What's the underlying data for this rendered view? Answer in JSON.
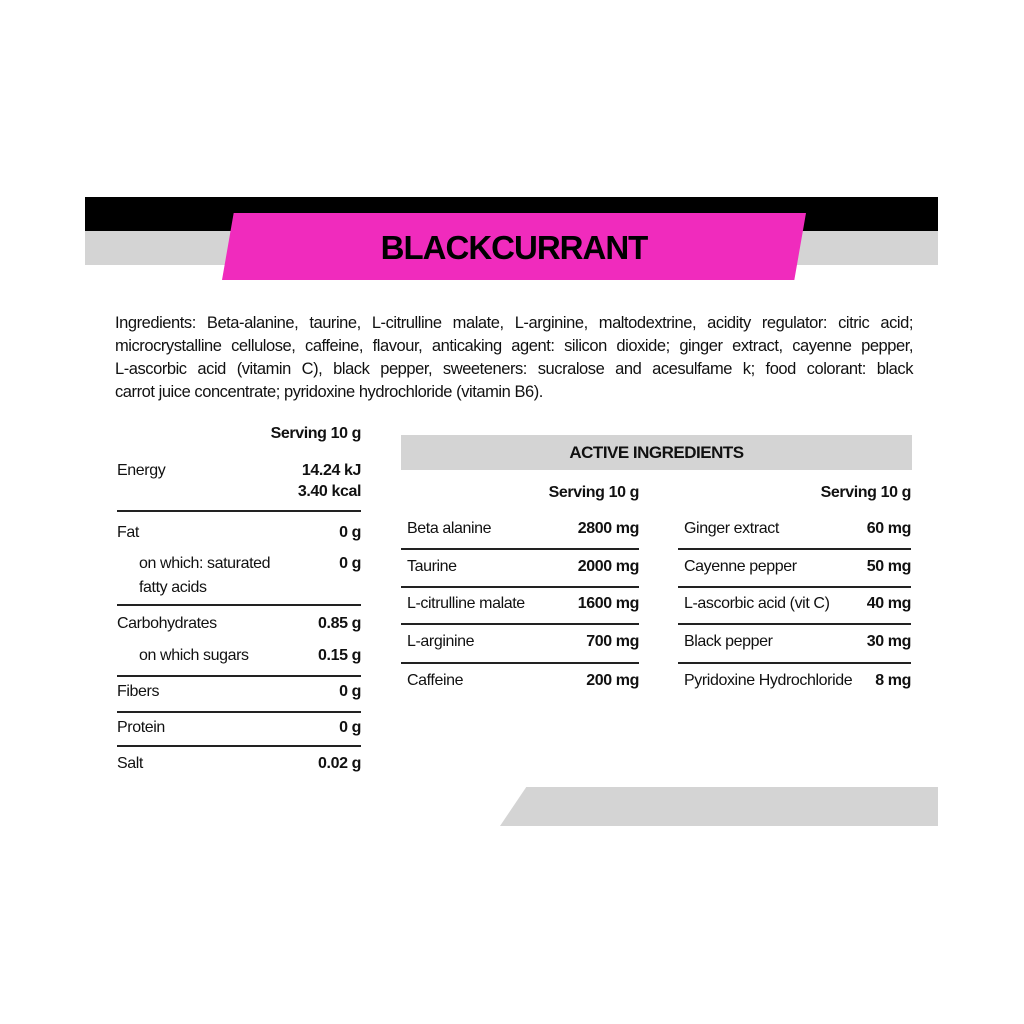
{
  "header": {
    "title": "BLACKCURRANT",
    "accent_color": "#f02bbd"
  },
  "ingredients": {
    "lines": [
      "Ingredients: Beta-alanine, taurine, L-citrulline malate, L-arginine, maltodextrine, acidity regulator: citric acid;",
      "microcrystalline cellulose, caffeine, flavour, anticaking agent: silicon dioxide; ginger extract, cayenne pepper,",
      "L-ascorbic acid (vitamin C), black pepper, sweeteners: sucralose and acesulfame k; food colorant: black",
      "carrot juice concentrate; pyridoxine hydrochloride (vitamin B6)."
    ]
  },
  "nutrition": {
    "serving_header": "Serving 10 g",
    "energy": {
      "label": "Energy",
      "kj": "14.24 kJ",
      "kcal": "3.40 kcal"
    },
    "fat": {
      "label": "Fat",
      "value": "0 g"
    },
    "saturated": {
      "label1": "on which: saturated",
      "label2": "fatty acids",
      "value": "0 g"
    },
    "carbs": {
      "label": "Carbohydrates",
      "value": "0.85 g"
    },
    "sugars": {
      "label": "on which sugars",
      "value": "0.15 g"
    },
    "fibers": {
      "label": "Fibers",
      "value": "0 g"
    },
    "protein": {
      "label": "Protein",
      "value": "0 g"
    },
    "salt": {
      "label": "Salt",
      "value": "0.02 g"
    }
  },
  "active": {
    "title": "ACTIVE INGREDIENTS",
    "left": {
      "serving_header": "Serving 10 g",
      "rows": [
        {
          "name": "Beta alanine",
          "value": "2800 mg"
        },
        {
          "name": "Taurine",
          "value": "2000 mg"
        },
        {
          "name": "L-citrulline malate",
          "value": "1600 mg"
        },
        {
          "name": "L-arginine",
          "value": "700 mg"
        },
        {
          "name": "Caffeine",
          "value": "200 mg"
        }
      ]
    },
    "right": {
      "serving_header": "Serving 10 g",
      "rows": [
        {
          "name": "Ginger extract",
          "value": "60 mg"
        },
        {
          "name": "Cayenne pepper",
          "value": "50 mg"
        },
        {
          "name": "L-ascorbic acid (vit C)",
          "value": "40 mg"
        },
        {
          "name": "Black pepper",
          "value": "30 mg"
        },
        {
          "name": "Pyridoxine Hydrochloride",
          "value": "8 mg"
        }
      ]
    }
  }
}
